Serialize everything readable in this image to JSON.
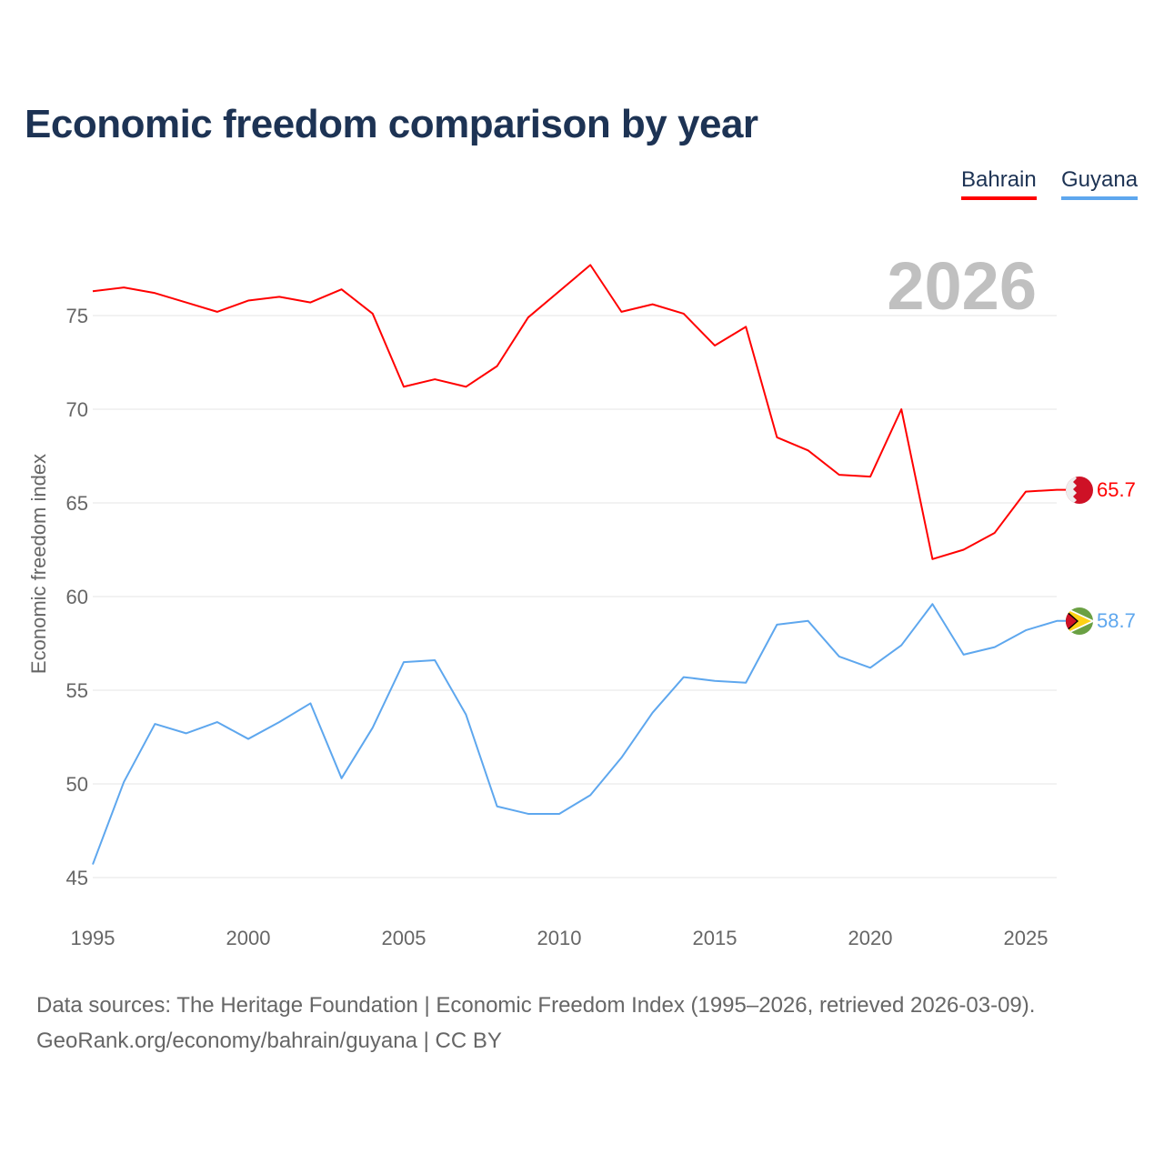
{
  "title": "Economic freedom comparison by year",
  "legend": [
    {
      "label": "Bahrain",
      "color": "#ff0000"
    },
    {
      "label": "Guyana",
      "color": "#5ea7ee"
    }
  ],
  "footer": {
    "line1": "Data sources: The Heritage Foundation | Economic Freedom Index (1995–2026, retrieved 2026-03-09).",
    "line2": "GeoRank.org/economy/bahrain/guyana | CC BY"
  },
  "chart_data": {
    "type": "line",
    "title": "Economic freedom comparison by year",
    "xlabel": "",
    "ylabel": "Economic freedom index",
    "year_label": "2026",
    "x": [
      1995,
      1996,
      1997,
      1998,
      1999,
      2000,
      2001,
      2002,
      2003,
      2004,
      2005,
      2006,
      2007,
      2008,
      2009,
      2010,
      2011,
      2012,
      2013,
      2014,
      2015,
      2016,
      2017,
      2018,
      2019,
      2020,
      2021,
      2022,
      2023,
      2024,
      2025,
      2026
    ],
    "xlim": [
      1995,
      2026
    ],
    "ylim": [
      45,
      78
    ],
    "xticks": [
      "1995",
      "2000",
      "2005",
      "2010",
      "2015",
      "2020",
      "2025"
    ],
    "yticks": [
      "45",
      "50",
      "55",
      "60",
      "65",
      "70",
      "75"
    ],
    "grid": true,
    "legend_position": "top-right",
    "series": [
      {
        "name": "Bahrain",
        "color": "#ff0000",
        "end_label": "65.7",
        "values": [
          76.3,
          76.5,
          76.2,
          75.7,
          75.2,
          75.8,
          76.0,
          75.7,
          76.4,
          75.1,
          71.2,
          71.6,
          71.2,
          72.3,
          74.9,
          76.3,
          77.7,
          75.2,
          75.6,
          75.1,
          73.4,
          74.4,
          68.5,
          67.8,
          66.5,
          66.4,
          70.0,
          62.0,
          62.5,
          63.4,
          65.6,
          65.7
        ]
      },
      {
        "name": "Guyana",
        "color": "#5ea7ee",
        "end_label": "58.7",
        "values": [
          45.7,
          50.1,
          53.2,
          52.7,
          53.3,
          52.4,
          53.3,
          54.3,
          50.3,
          53.0,
          56.5,
          56.6,
          53.7,
          48.8,
          48.4,
          48.4,
          49.4,
          51.4,
          53.8,
          55.7,
          55.5,
          55.4,
          58.5,
          58.7,
          56.8,
          56.2,
          57.4,
          59.6,
          56.9,
          57.3,
          58.2,
          58.7
        ]
      }
    ]
  }
}
